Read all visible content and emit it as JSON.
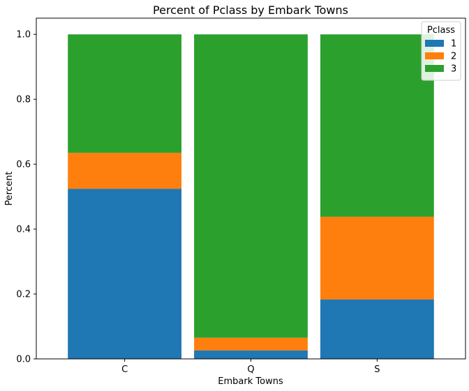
{
  "chart_data": {
    "type": "bar",
    "stacked": true,
    "title": "Percent of Pclass by Embark Towns",
    "xlabel": "Embark Towns",
    "ylabel": "Percent",
    "categories": [
      "C",
      "Q",
      "S"
    ],
    "series": [
      {
        "name": "1",
        "color": "#1f77b4",
        "values": [
          0.524,
          0.026,
          0.183
        ]
      },
      {
        "name": "2",
        "color": "#ff7f0e",
        "values": [
          0.111,
          0.039,
          0.255
        ]
      },
      {
        "name": "3",
        "color": "#2ca02c",
        "values": [
          0.365,
          0.935,
          0.562
        ]
      }
    ],
    "ylim": [
      0,
      1.05
    ],
    "yticks": [
      "0.0",
      "0.2",
      "0.4",
      "0.6",
      "0.8",
      "1.0"
    ],
    "legend": {
      "title": "Pclass",
      "placement": "top-right"
    },
    "grid": false
  }
}
